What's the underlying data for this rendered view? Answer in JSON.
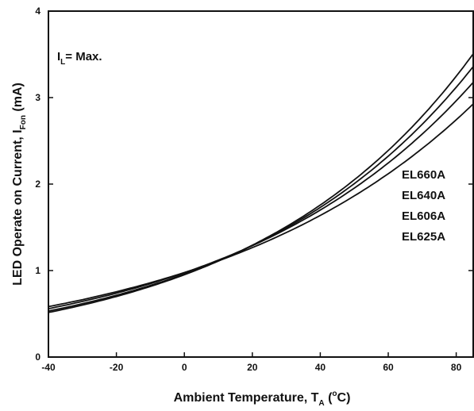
{
  "chart_data": {
    "type": "line",
    "title": "",
    "xlabel": {
      "main": "Ambient Temperature, T",
      "subscript": "A",
      "unit_open": " (",
      "superscript": "o",
      "unit_rest": "C)"
    },
    "ylabel": {
      "main": "LED Operate on Current, I",
      "subscript": "Fon",
      "unit": " (mA)"
    },
    "xlim": [
      -40,
      85
    ],
    "ylim": [
      0,
      4
    ],
    "x_ticks": [
      -40,
      -20,
      0,
      20,
      40,
      60,
      80
    ],
    "x_tick_labels": [
      "-40",
      "-20",
      "0",
      "20",
      "40",
      "60",
      "80"
    ],
    "y_ticks": [
      0,
      1,
      2,
      3,
      4
    ],
    "y_tick_labels": [
      "0",
      "1",
      "2",
      "3",
      "4"
    ],
    "grid": false,
    "legend_position": "right",
    "annotation": {
      "main": "I",
      "subscript": "L",
      "rest": "= Max."
    },
    "x": [
      -40,
      -20,
      0,
      20,
      40,
      60,
      85
    ],
    "series": [
      {
        "name": "EL660A",
        "values": [
          0.5,
          0.69,
          0.96,
          1.33,
          1.84,
          2.45,
          3.29
        ]
      },
      {
        "name": "EL640A",
        "values": [
          0.52,
          0.7,
          0.96,
          1.33,
          1.81,
          2.41,
          3.13
        ]
      },
      {
        "name": "EL606A",
        "values": [
          0.55,
          0.73,
          0.97,
          1.31,
          1.77,
          2.33,
          2.99
        ]
      },
      {
        "name": "EL625A",
        "values": [
          0.58,
          0.75,
          0.97,
          1.27,
          1.68,
          2.18,
          2.82
        ]
      }
    ]
  },
  "colors": {
    "line": "#111111",
    "axis": "#111111",
    "background": "#ffffff"
  }
}
